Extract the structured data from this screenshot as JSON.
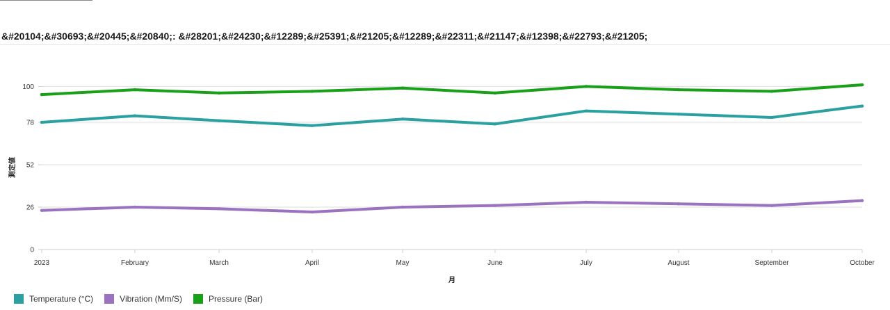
{
  "header": {
    "title": "&#20104;&#30693;&#20445;&#20840;: &#28201;&#24230;&#12289;&#25391;&#21205;&#12289;&#22311;&#21147;&#12398;&#22793;&#21205;"
  },
  "chart_data": {
    "type": "line",
    "title": "",
    "xlabel": "月",
    "ylabel": "測定値",
    "ylim": [
      0,
      104
    ],
    "yticks": [
      0,
      26,
      52,
      78,
      100
    ],
    "grid": true,
    "legend_position": "bottom-left",
    "categories": [
      "2023",
      "February",
      "March",
      "April",
      "May",
      "June",
      "July",
      "August",
      "September",
      "October"
    ],
    "series": [
      {
        "name": "Temperature (°C)",
        "color": "#2aa0a0",
        "values": [
          78,
          82,
          79,
          76,
          80,
          77,
          85,
          83,
          81,
          88
        ]
      },
      {
        "name": "Vibration (Mm/S)",
        "color": "#9b72c0",
        "values": [
          24,
          26,
          25,
          23,
          26,
          27,
          29,
          28,
          27,
          30
        ]
      },
      {
        "name": "Pressure (Bar)",
        "color": "#18a018",
        "values": [
          95,
          98,
          96,
          97,
          99,
          96,
          100,
          98,
          97,
          101
        ]
      }
    ]
  }
}
